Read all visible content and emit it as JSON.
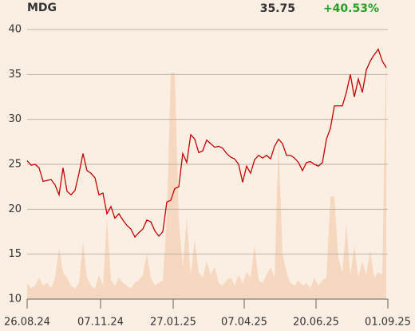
{
  "chart_data": {
    "type": "line",
    "title": "MDG",
    "last_price": 35.75,
    "change": 40.53,
    "change_label": "+40.53%",
    "change_color": "#22a022",
    "xlim": [
      0,
      90.4
    ],
    "ylim": [
      10,
      40
    ],
    "y2lim": [
      0,
      100
    ],
    "xticks": [
      {
        "value": 0,
        "label": "26.08.24"
      },
      {
        "value": 18.4,
        "label": "07.11.24"
      },
      {
        "value": 36.6,
        "label": "27.01.25"
      },
      {
        "value": 54.4,
        "label": "07.04.25"
      },
      {
        "value": 72.4,
        "label": "20.06.25"
      },
      {
        "value": 90.4,
        "label": "01.09.25"
      }
    ],
    "yticks": [
      10,
      15,
      20,
      25,
      30,
      35,
      40
    ],
    "grid": true,
    "series": [
      {
        "type": "line",
        "color": "#c40000",
        "values": [
          25.4,
          24.9,
          25.0,
          24.6,
          23.1,
          23.2,
          23.3,
          22.7,
          21.6,
          24.6,
          22.0,
          21.6,
          22.1,
          24.0,
          26.2,
          24.3,
          24.0,
          23.5,
          21.6,
          21.8,
          19.5,
          20.3,
          19.0,
          19.5,
          18.8,
          18.2,
          17.8,
          16.9,
          17.4,
          17.8,
          18.8,
          18.6,
          17.6,
          17.0,
          17.5,
          20.8,
          21.0,
          22.3,
          22.5,
          26.2,
          25.2,
          28.3,
          27.8,
          26.3,
          26.5,
          27.7,
          27.3,
          26.9,
          27.0,
          26.8,
          26.2,
          25.8,
          25.6,
          25.0,
          23.0,
          24.8,
          24.0,
          25.5,
          26.0,
          25.7,
          26.0,
          25.6,
          27.0,
          27.8,
          27.3,
          26.0,
          26.0,
          25.7,
          25.2,
          24.3,
          25.2,
          25.3,
          25.0,
          24.8,
          25.2,
          27.8,
          29.0,
          31.5,
          31.5,
          31.5,
          33.0,
          35.0,
          32.5,
          34.5,
          33.0,
          35.5,
          36.5,
          37.2,
          37.8,
          36.5,
          35.75
        ]
      },
      {
        "type": "area",
        "axis": "y2",
        "color": "#f6d8c0",
        "values": [
          6,
          4,
          5,
          8,
          5,
          6,
          4,
          8,
          19,
          10,
          8,
          5,
          4,
          6,
          21,
          8,
          5,
          4,
          9,
          5,
          30,
          7,
          5,
          8,
          6,
          5,
          4,
          6,
          7,
          9,
          17,
          8,
          5,
          6,
          7,
          30,
          84,
          84,
          30,
          12,
          30,
          9,
          22,
          10,
          8,
          14,
          9,
          12,
          6,
          5,
          7,
          8,
          5,
          9,
          6,
          10,
          8,
          20,
          7,
          6,
          9,
          12,
          8,
          60,
          17,
          10,
          6,
          5,
          7,
          5,
          6,
          4,
          8,
          5,
          7,
          8,
          38,
          38,
          15,
          10,
          28,
          9,
          20,
          8,
          14,
          9,
          18,
          8,
          10,
          9,
          95
        ]
      }
    ]
  }
}
